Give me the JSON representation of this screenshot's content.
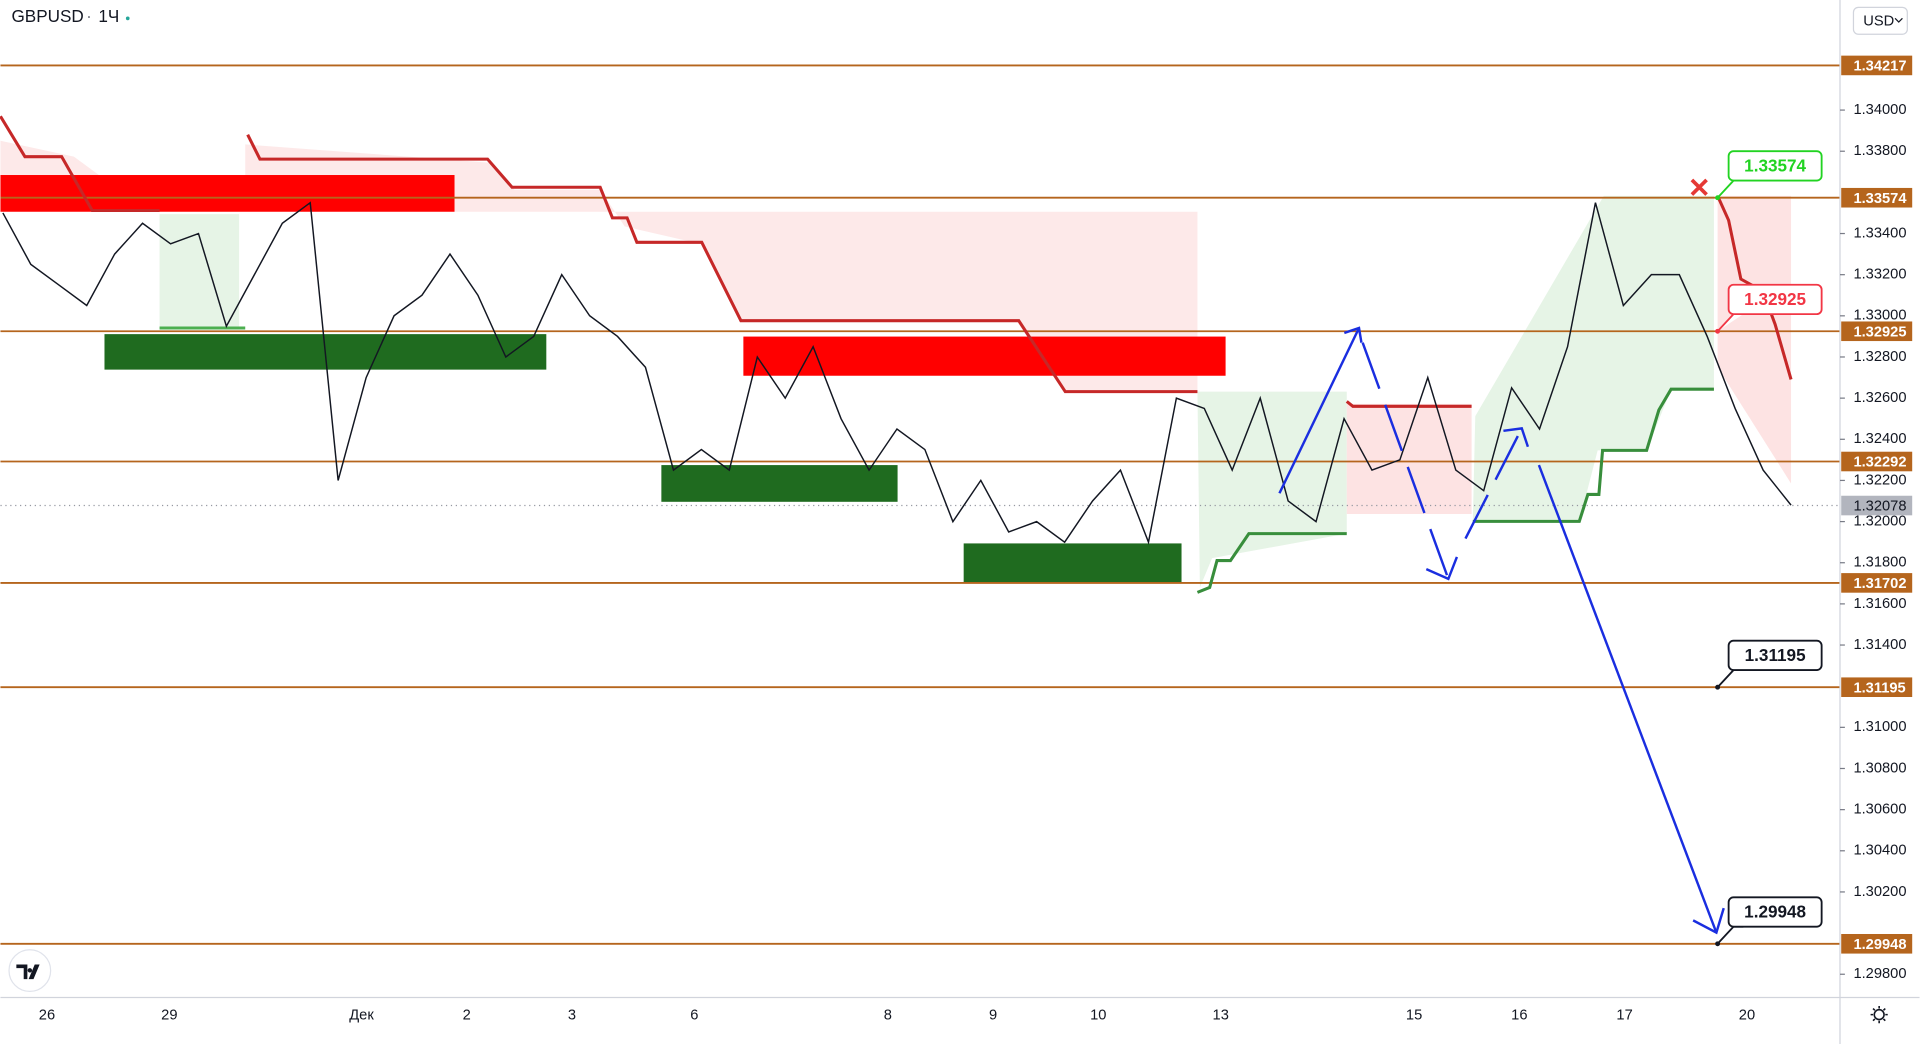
{
  "header": {
    "symbol": "GBPUSD",
    "interval": "1Ч",
    "currency": "USD"
  },
  "price_axis": {
    "ylim": [
      1.29687,
      1.34535
    ],
    "ticks": [
      {
        "value": 1.34,
        "label": "1.34000"
      },
      {
        "value": 1.338,
        "label": "1.33800"
      },
      {
        "value": 1.334,
        "label": "1.33400"
      },
      {
        "value": 1.332,
        "label": "1.33200"
      },
      {
        "value": 1.33,
        "label": "1.33000"
      },
      {
        "value": 1.328,
        "label": "1.32800"
      },
      {
        "value": 1.326,
        "label": "1.32600"
      },
      {
        "value": 1.324,
        "label": "1.32400"
      },
      {
        "value": 1.322,
        "label": "1.32200"
      },
      {
        "value": 1.32,
        "label": "1.32000"
      },
      {
        "value": 1.318,
        "label": "1.31800"
      },
      {
        "value": 1.316,
        "label": "1.31600"
      },
      {
        "value": 1.314,
        "label": "1.31400"
      },
      {
        "value": 1.31,
        "label": "1.31000"
      },
      {
        "value": 1.308,
        "label": "1.30800"
      },
      {
        "value": 1.306,
        "label": "1.30600"
      },
      {
        "value": 1.304,
        "label": "1.30400"
      },
      {
        "value": 1.302,
        "label": "1.30200"
      },
      {
        "value": 1.298,
        "label": "1.29800"
      }
    ]
  },
  "levels": [
    {
      "value": 1.34217,
      "label": "1.34217"
    },
    {
      "value": 1.33574,
      "label": "1.33574"
    },
    {
      "value": 1.32925,
      "label": "1.32925"
    },
    {
      "value": 1.32292,
      "label": "1.32292"
    },
    {
      "value": 1.31702,
      "label": "1.31702"
    },
    {
      "value": 1.31195,
      "label": "1.31195"
    },
    {
      "value": 1.29948,
      "label": "1.29948"
    }
  ],
  "level_color": "#b5651d",
  "current_price": {
    "value": 1.32078,
    "label": "1.32078"
  },
  "callouts": [
    {
      "value": 1.33574,
      "label": "1.33574",
      "color": "#22d322"
    },
    {
      "value": 1.32925,
      "label": "1.32925",
      "color": "#f23645"
    },
    {
      "value": 1.31195,
      "label": "1.31195",
      "color": "#131722"
    },
    {
      "value": 1.29948,
      "label": "1.29948",
      "color": "#131722"
    }
  ],
  "time_axis": {
    "labels": [
      "26",
      "29",
      "Дек",
      "2",
      "3",
      "6",
      "8",
      "9",
      "10",
      "13",
      "15",
      "16",
      "17",
      "20"
    ]
  },
  "price_trace": [
    1.335,
    1.3325,
    1.3315,
    1.3305,
    1.333,
    1.3345,
    1.3335,
    1.334,
    1.3295,
    1.332,
    1.3345,
    1.3355,
    1.322,
    1.327,
    1.33,
    1.331,
    1.333,
    1.331,
    1.328,
    1.329,
    1.332,
    1.33,
    1.329,
    1.3275,
    1.3225,
    1.3235,
    1.3225,
    1.328,
    1.326,
    1.3285,
    1.325,
    1.3225,
    1.3245,
    1.3235,
    1.32,
    1.322,
    1.3195,
    1.32,
    1.319,
    1.321,
    1.3225,
    1.319,
    1.326,
    1.3255,
    1.3225,
    1.326,
    1.321,
    1.32,
    1.325,
    1.3225,
    1.323,
    1.327,
    1.3225,
    1.3215,
    1.3265,
    1.3245,
    1.3285,
    1.3355,
    1.3305,
    1.332,
    1.332,
    1.329,
    1.3255,
    1.3225,
    1.3208
  ]
}
